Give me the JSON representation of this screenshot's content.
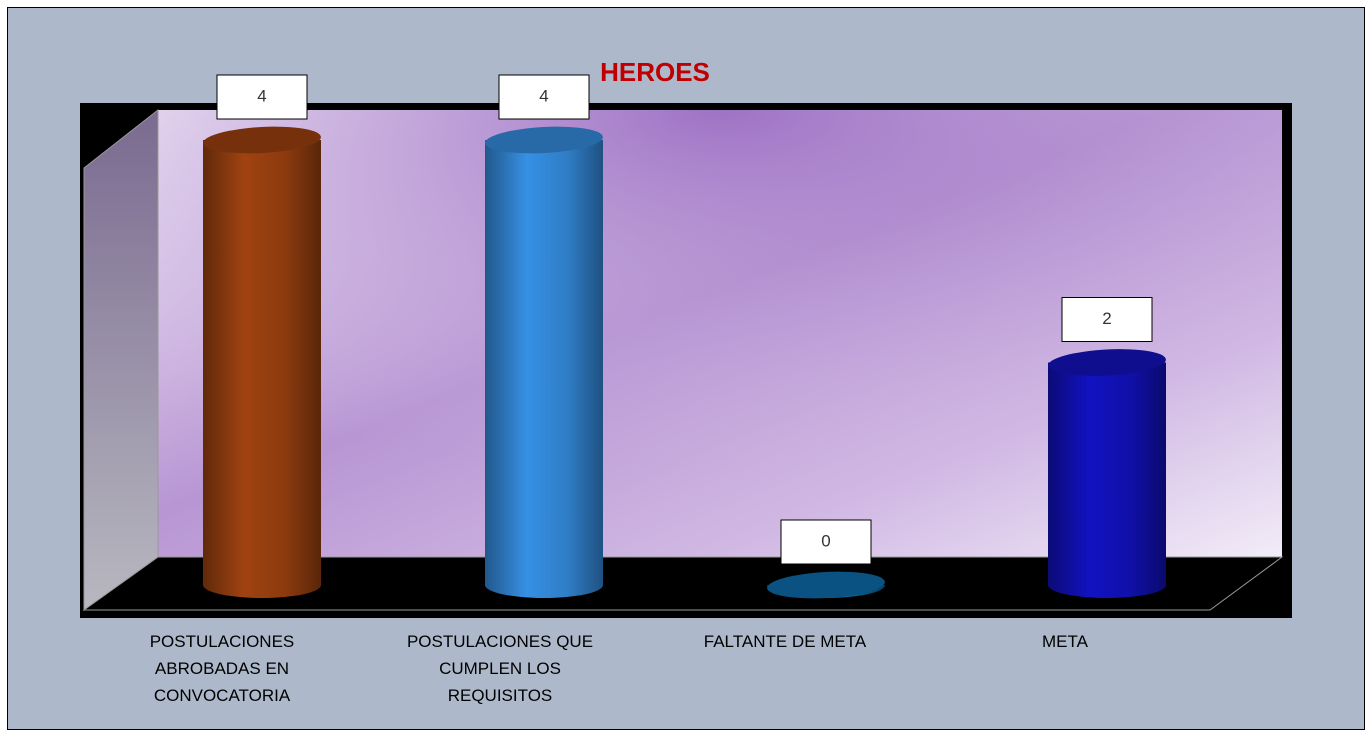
{
  "chart_data": {
    "type": "bar3d-cylinder",
    "title": "HEROES",
    "categories": [
      "POSTULACIONES ABROBADAS EN CONVOCATORIA",
      "POSTULACIONES QUE CUMPLEN LOS REQUISITOS",
      "FALTANTE DE META",
      "META"
    ],
    "values": [
      4,
      4,
      0,
      2
    ],
    "colors": [
      "#8b3a0e",
      "#2f7dc6",
      "#0b6199",
      "#1010a8"
    ]
  }
}
